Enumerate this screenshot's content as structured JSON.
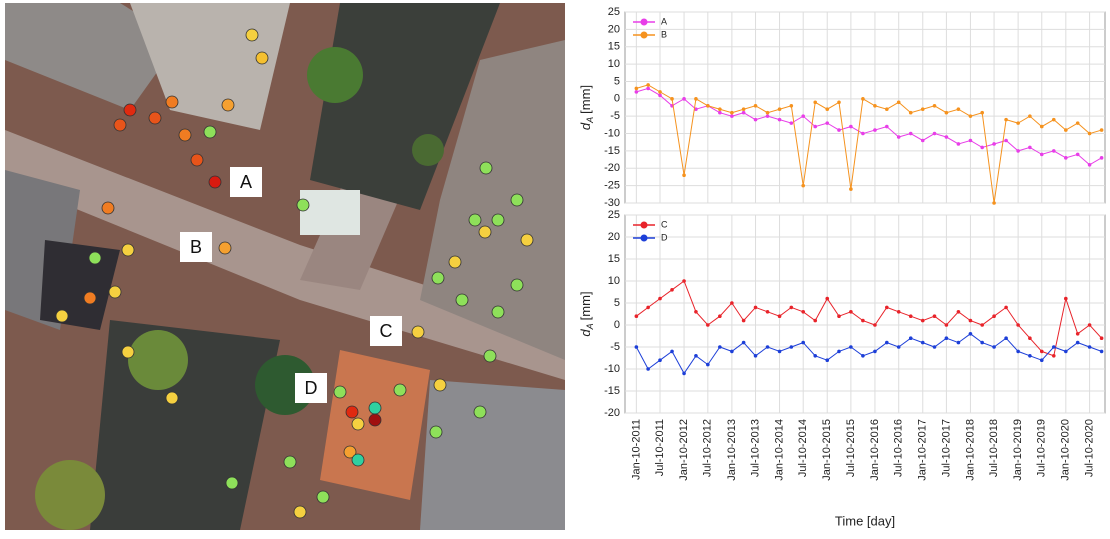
{
  "map": {
    "labels": [
      "A",
      "B",
      "C",
      "D"
    ]
  },
  "chart_data": [
    {
      "type": "line",
      "ylabel": {
        "main": "d",
        "sub": "A",
        "unit": "[mm]"
      },
      "x": [
        "2011-01-10",
        "2011-04-10",
        "2011-07-10",
        "2011-10-10",
        "2012-01-10",
        "2012-04-10",
        "2012-07-10",
        "2012-10-10",
        "2013-01-10",
        "2013-04-10",
        "2013-07-10",
        "2013-10-10",
        "2014-01-10",
        "2014-04-10",
        "2014-07-10",
        "2014-10-10",
        "2015-01-10",
        "2015-04-10",
        "2015-07-10",
        "2015-10-10",
        "2016-01-10",
        "2016-04-10",
        "2016-07-10",
        "2016-10-10",
        "2017-01-10",
        "2017-04-10",
        "2017-07-10",
        "2017-10-10",
        "2018-01-10",
        "2018-04-10",
        "2018-07-10",
        "2018-10-10",
        "2019-01-10",
        "2019-04-10",
        "2019-07-10",
        "2019-10-10",
        "2020-01-10",
        "2020-04-10",
        "2020-07-10",
        "2020-10-10"
      ],
      "series": [
        {
          "name": "A",
          "color": "#e83ee8",
          "values": [
            2,
            3,
            1,
            -2,
            0,
            -3,
            -2,
            -4,
            -5,
            -4,
            -6,
            -5,
            -6,
            -7,
            -5,
            -8,
            -7,
            -9,
            -8,
            -10,
            -9,
            -8,
            -11,
            -10,
            -12,
            -10,
            -11,
            -13,
            -12,
            -14,
            -13,
            -12,
            -15,
            -14,
            -16,
            -15,
            -17,
            -16,
            -19,
            -17
          ]
        },
        {
          "name": "B",
          "color": "#f5921e",
          "values": [
            3,
            4,
            2,
            0,
            -22,
            0,
            -2,
            -3,
            -4,
            -3,
            -2,
            -4,
            -3,
            -2,
            -25,
            -1,
            -3,
            -1,
            -26,
            0,
            -2,
            -3,
            -1,
            -4,
            -3,
            -2,
            -4,
            -3,
            -5,
            -4,
            -30,
            -6,
            -7,
            -5,
            -8,
            -6,
            -9,
            -7,
            -10,
            -9
          ]
        }
      ],
      "xlim": [
        "2010-10-15",
        "2020-11-05"
      ],
      "xticks": [
        "2011-01-10",
        "2011-07-10",
        "2012-01-10",
        "2012-07-10",
        "2013-01-10",
        "2013-07-10",
        "2014-01-10",
        "2014-07-10",
        "2015-01-10",
        "2015-07-10",
        "2016-01-10",
        "2016-07-10",
        "2017-01-10",
        "2017-07-10",
        "2018-01-10",
        "2018-07-10",
        "2019-01-10",
        "2019-07-10",
        "2020-01-10",
        "2020-07-10"
      ],
      "ylim": [
        -30,
        25
      ],
      "yticks": [
        -30,
        -25,
        -20,
        -15,
        -10,
        -5,
        0,
        5,
        10,
        15,
        20,
        25
      ],
      "grid": true,
      "legend": "upper left"
    },
    {
      "type": "line",
      "ylabel": {
        "main": "d",
        "sub": "A",
        "unit": "[mm]"
      },
      "xlabel": "Time [day]",
      "x": [
        "2011-01-10",
        "2011-04-10",
        "2011-07-10",
        "2011-10-10",
        "2012-01-10",
        "2012-04-10",
        "2012-07-10",
        "2012-10-10",
        "2013-01-10",
        "2013-04-10",
        "2013-07-10",
        "2013-10-10",
        "2014-01-10",
        "2014-04-10",
        "2014-07-10",
        "2014-10-10",
        "2015-01-10",
        "2015-04-10",
        "2015-07-10",
        "2015-10-10",
        "2016-01-10",
        "2016-04-10",
        "2016-07-10",
        "2016-10-10",
        "2017-01-10",
        "2017-04-10",
        "2017-07-10",
        "2017-10-10",
        "2018-01-10",
        "2018-04-10",
        "2018-07-10",
        "2018-10-10",
        "2019-01-10",
        "2019-04-10",
        "2019-07-10",
        "2019-10-10",
        "2020-01-10",
        "2020-04-10",
        "2020-07-10",
        "2020-10-10"
      ],
      "series": [
        {
          "name": "C",
          "color": "#e8232a",
          "values": [
            2,
            4,
            6,
            8,
            10,
            3,
            0,
            2,
            5,
            1,
            4,
            3,
            2,
            4,
            3,
            1,
            6,
            2,
            3,
            1,
            0,
            4,
            3,
            2,
            1,
            2,
            0,
            3,
            1,
            0,
            2,
            4,
            0,
            -3,
            -6,
            -7,
            6,
            -2,
            0,
            -3
          ]
        },
        {
          "name": "D",
          "color": "#1d3fd8",
          "values": [
            -5,
            -10,
            -8,
            -6,
            -11,
            -7,
            -9,
            -5,
            -6,
            -4,
            -7,
            -5,
            -6,
            -5,
            -4,
            -7,
            -8,
            -6,
            -5,
            -7,
            -6,
            -4,
            -5,
            -3,
            -4,
            -5,
            -3,
            -4,
            -2,
            -4,
            -5,
            -3,
            -6,
            -7,
            -8,
            -5,
            -6,
            -4,
            -5,
            -6
          ]
        }
      ],
      "xlim": [
        "2010-10-15",
        "2020-11-05"
      ],
      "xticks": [
        {
          "value": "2011-01-10",
          "label": "Jan-10-2011"
        },
        {
          "value": "2011-07-10",
          "label": "Jul-10-2011"
        },
        {
          "value": "2012-01-10",
          "label": "Jan-10-2012"
        },
        {
          "value": "2012-07-10",
          "label": "Jul-10-2012"
        },
        {
          "value": "2013-01-10",
          "label": "Jan-10-2013"
        },
        {
          "value": "2013-07-10",
          "label": "Jul-10-2013"
        },
        {
          "value": "2014-01-10",
          "label": "Jan-10-2014"
        },
        {
          "value": "2014-07-10",
          "label": "Jul-10-2014"
        },
        {
          "value": "2015-01-10",
          "label": "Jan-10-2015"
        },
        {
          "value": "2015-07-10",
          "label": "Jul-10-2015"
        },
        {
          "value": "2016-01-10",
          "label": "Jan-10-2016"
        },
        {
          "value": "2016-07-10",
          "label": "Jul-10-2016"
        },
        {
          "value": "2017-01-10",
          "label": "Jan-10-2017"
        },
        {
          "value": "2017-07-10",
          "label": "Jul-10-2017"
        },
        {
          "value": "2018-01-10",
          "label": "Jan-10-2018"
        },
        {
          "value": "2018-07-10",
          "label": "Jul-10-2018"
        },
        {
          "value": "2019-01-10",
          "label": "Jan-10-2019"
        },
        {
          "value": "2019-07-10",
          "label": "Jul-10-2019"
        },
        {
          "value": "2020-01-10",
          "label": "Jan-10-2020"
        },
        {
          "value": "2020-07-10",
          "label": "Jul-10-2020"
        }
      ],
      "ylim": [
        -20,
        25
      ],
      "yticks": [
        -20,
        -15,
        -10,
        -5,
        0,
        5,
        10,
        15,
        20,
        25
      ],
      "grid": true,
      "legend": "upper left"
    }
  ]
}
